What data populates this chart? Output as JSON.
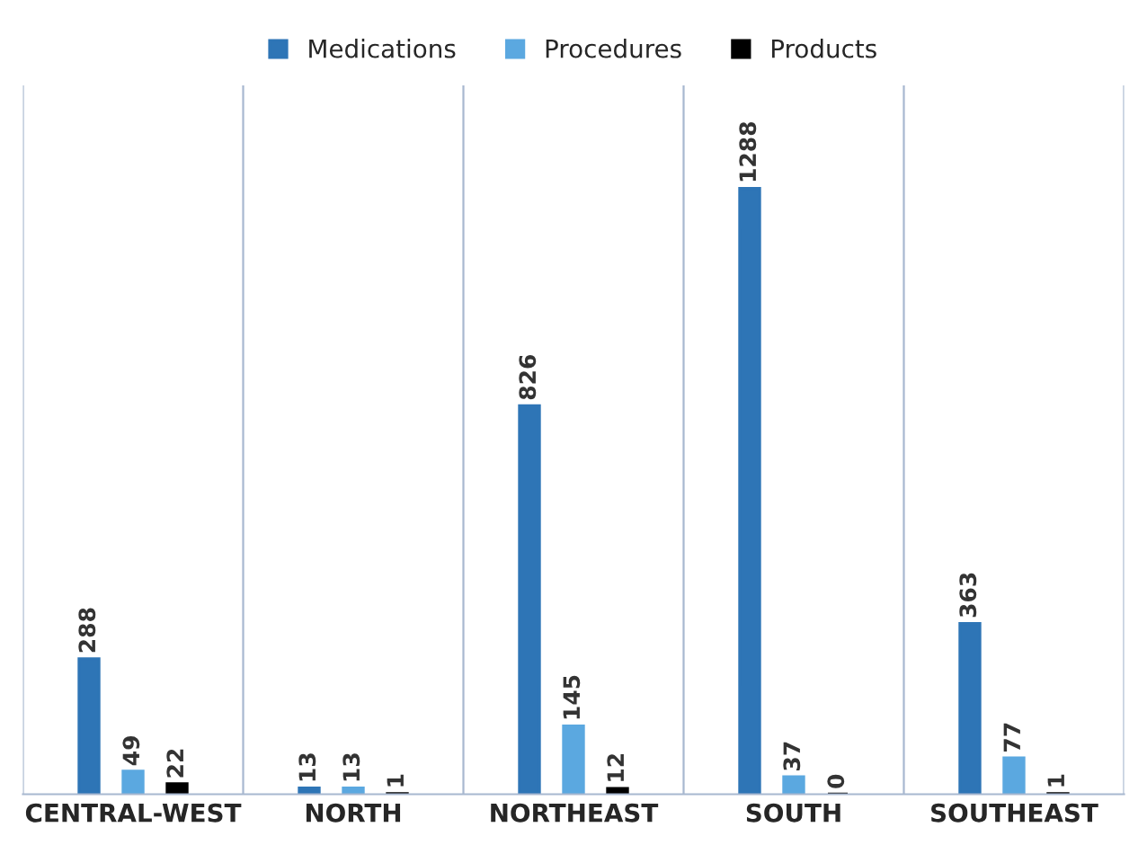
{
  "chart_data": {
    "type": "bar",
    "categories": [
      "CENTRAL-WEST",
      "NORTH",
      "NORTHEAST",
      "SOUTH",
      "SOUTHEAST"
    ],
    "series": [
      {
        "name": "Medications",
        "color": "#2e75b6",
        "values": [
          288,
          13,
          826,
          1288,
          363
        ]
      },
      {
        "name": "Procedures",
        "color": "#5ba8e0",
        "values": [
          49,
          13,
          145,
          37,
          77
        ]
      },
      {
        "name": "Products",
        "color": "#000000",
        "values": [
          22,
          1,
          12,
          0,
          1
        ]
      }
    ],
    "data_labels": true,
    "legend": "top",
    "grid": "x",
    "tick_labels": "x"
  }
}
